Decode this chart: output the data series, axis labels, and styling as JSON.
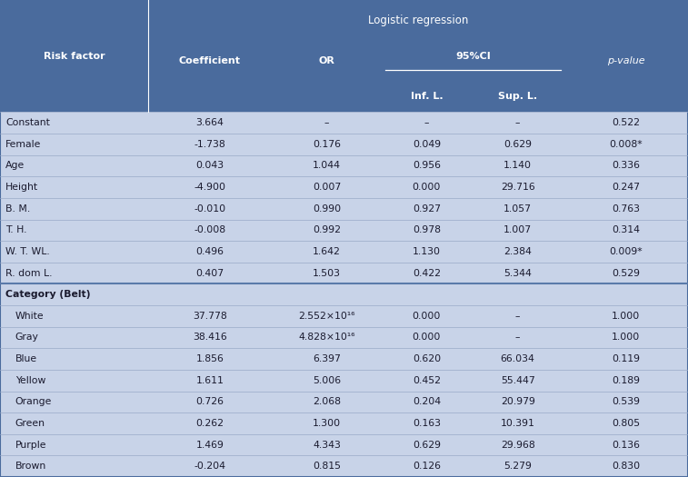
{
  "title": "Logistic regression",
  "header_bg": "#4a6b9d",
  "row_bg": "#c8d3e8",
  "separator_color": "#ffffff",
  "outer_border": "#4a6b9d",
  "text_color_header": "#ffffff",
  "text_color_data": "#1a1a2e",
  "rows": [
    {
      "label": "Constant",
      "coeff": "3.664",
      "OR": "–",
      "inf": "–",
      "sup": "–",
      "pval": "0.522",
      "indent": false,
      "is_category": false
    },
    {
      "label": "Female",
      "coeff": "-1.738",
      "OR": "0.176",
      "inf": "0.049",
      "sup": "0.629",
      "pval": "0.008*",
      "indent": false,
      "is_category": false
    },
    {
      "label": "Age",
      "coeff": "0.043",
      "OR": "1.044",
      "inf": "0.956",
      "sup": "1.140",
      "pval": "0.336",
      "indent": false,
      "is_category": false
    },
    {
      "label": "Height",
      "coeff": "-4.900",
      "OR": "0.007",
      "inf": "0.000",
      "sup": "29.716",
      "pval": "0.247",
      "indent": false,
      "is_category": false
    },
    {
      "label": "B. M.",
      "coeff": "-0.010",
      "OR": "0.990",
      "inf": "0.927",
      "sup": "1.057",
      "pval": "0.763",
      "indent": false,
      "is_category": false
    },
    {
      "label": "T. H.",
      "coeff": "-0.008",
      "OR": "0.992",
      "inf": "0.978",
      "sup": "1.007",
      "pval": "0.314",
      "indent": false,
      "is_category": false
    },
    {
      "label": "W. T. WL.",
      "coeff": "0.496",
      "OR": "1.642",
      "inf": "1.130",
      "sup": "2.384",
      "pval": "0.009*",
      "indent": false,
      "is_category": false
    },
    {
      "label": "R. dom L.",
      "coeff": "0.407",
      "OR": "1.503",
      "inf": "0.422",
      "sup": "5.344",
      "pval": "0.529",
      "indent": false,
      "is_category": false
    },
    {
      "label": "Category (Belt)",
      "coeff": "",
      "OR": "",
      "inf": "",
      "sup": "",
      "pval": "",
      "indent": false,
      "is_category": true
    },
    {
      "label": "White",
      "coeff": "37.778",
      "OR": "2.552×10¹⁶",
      "inf": "0.000",
      "sup": "–",
      "pval": "1.000",
      "indent": true,
      "is_category": false
    },
    {
      "label": "Gray",
      "coeff": "38.416",
      "OR": "4.828×10¹⁶",
      "inf": "0.000",
      "sup": "–",
      "pval": "1.000",
      "indent": true,
      "is_category": false
    },
    {
      "label": "Blue",
      "coeff": "1.856",
      "OR": "6.397",
      "inf": "0.620",
      "sup": "66.034",
      "pval": "0.119",
      "indent": true,
      "is_category": false
    },
    {
      "label": "Yellow",
      "coeff": "1.611",
      "OR": "5.006",
      "inf": "0.452",
      "sup": "55.447",
      "pval": "0.189",
      "indent": true,
      "is_category": false
    },
    {
      "label": "Orange",
      "coeff": "0.726",
      "OR": "2.068",
      "inf": "0.204",
      "sup": "20.979",
      "pval": "0.539",
      "indent": true,
      "is_category": false
    },
    {
      "label": "Green",
      "coeff": "0.262",
      "OR": "1.300",
      "inf": "0.163",
      "sup": "10.391",
      "pval": "0.805",
      "indent": true,
      "is_category": false
    },
    {
      "label": "Purple",
      "coeff": "1.469",
      "OR": "4.343",
      "inf": "0.629",
      "sup": "29.968",
      "pval": "0.136",
      "indent": true,
      "is_category": false
    },
    {
      "label": "Brown",
      "coeff": "-0.204",
      "OR": "0.815",
      "inf": "0.126",
      "sup": "5.279",
      "pval": "0.830",
      "indent": true,
      "is_category": false
    }
  ],
  "figsize": [
    7.57,
    5.25
  ],
  "dpi": 100
}
